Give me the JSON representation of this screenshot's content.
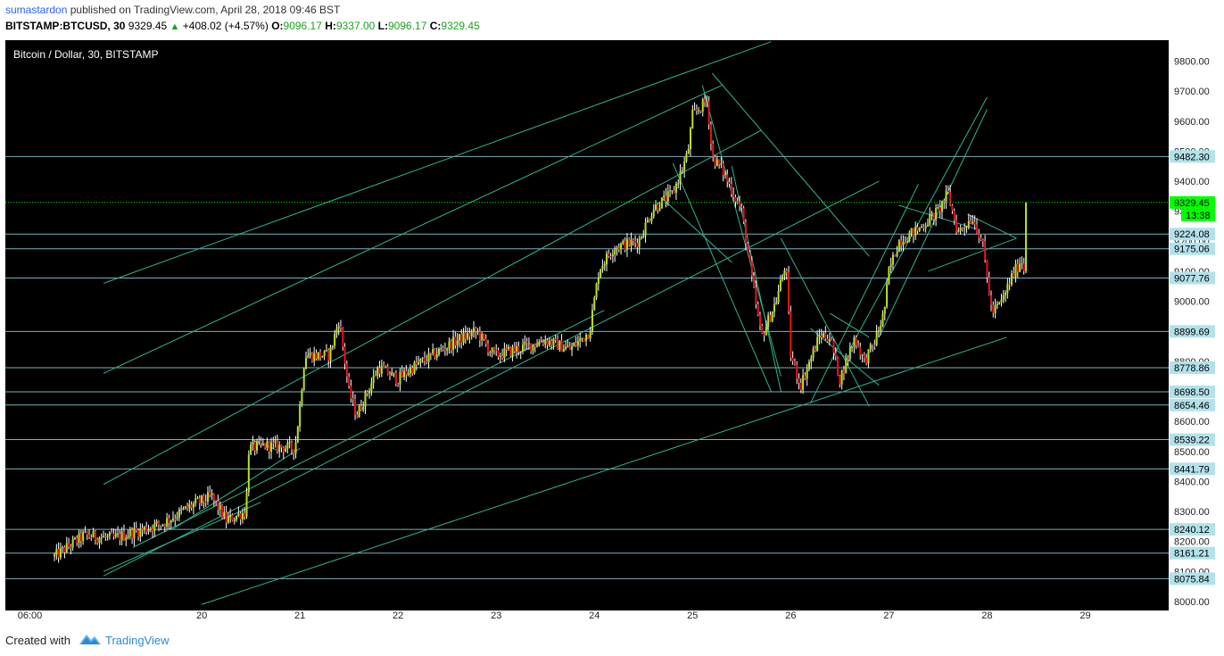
{
  "header": {
    "author": "sumastardon",
    "published": "published on TradingView.com, April 28, 2018 09:46 BST",
    "symbol": "BITSTAMP:BTCUSD, 30",
    "last": "9329.45",
    "change": "+408.02 (+4.57%)",
    "o_label": "O:",
    "o_value": "9096.17",
    "h_label": "H:",
    "h_value": "9337.00",
    "l_label": "L:",
    "l_value": "9096.17",
    "c_label": "C:",
    "c_value": "9329.45"
  },
  "footer": {
    "created_with": "Created with",
    "brand": "TradingView"
  },
  "colors": {
    "background": "#000000",
    "line": "#2fb58e",
    "level": "#8fd3dc",
    "up": "#b9e31b",
    "down": "#e8141c",
    "last_price": "#00ff00"
  },
  "chart_data": {
    "type": "candlestick",
    "title": "Bitcoin / Dollar, 30, BITSTAMP",
    "xlabel": "",
    "ylabel": "",
    "ylim": [
      7970,
      9870
    ],
    "y_ticks": [
      8000,
      8100,
      8200,
      8300,
      8400,
      8500,
      8600,
      8700,
      8800,
      8900,
      9000,
      9100,
      9200,
      9300,
      9400,
      9500,
      9600,
      9700,
      9800
    ],
    "x_ticks": [
      {
        "label": "06:00",
        "day": 18.25
      },
      {
        "label": "20",
        "day": 20
      },
      {
        "label": "21",
        "day": 21
      },
      {
        "label": "22",
        "day": 22
      },
      {
        "label": "23",
        "day": 23
      },
      {
        "label": "24",
        "day": 24
      },
      {
        "label": "25",
        "day": 25
      },
      {
        "label": "26",
        "day": 26
      },
      {
        "label": "27",
        "day": 27
      },
      {
        "label": "28",
        "day": 28
      },
      {
        "label": "29",
        "day": 29
      }
    ],
    "last_price": {
      "value": 9329.45,
      "label": "9329.45",
      "countdown": "13:38"
    },
    "horizontal_levels": [
      9482.3,
      9224.08,
      9175.06,
      9077.76,
      8899.69,
      8778.86,
      8698.5,
      8654.46,
      8539.22,
      8441.79,
      8240.12,
      8161.21,
      8075.84
    ],
    "level_labels": [
      "9482.30",
      "9224.08",
      "9175.06",
      "9077.76",
      "8899.69",
      "8778.86",
      "8698.50",
      "8654.46",
      "8539.22",
      "8441.79",
      "8240.12",
      "8161.21",
      "8075.84"
    ],
    "trendlines": [
      [
        [
          19.0,
          9060
        ],
        [
          25.8,
          9865
        ]
      ],
      [
        [
          19.0,
          8760
        ],
        [
          25.3,
          9720
        ]
      ],
      [
        [
          19.0,
          8390
        ],
        [
          25.7,
          9570
        ]
      ],
      [
        [
          19.3,
          8180
        ],
        [
          24.1,
          8970
        ]
      ],
      [
        [
          19.0,
          8085
        ],
        [
          26.9,
          9400
        ]
      ],
      [
        [
          20.0,
          7990
        ],
        [
          28.2,
          8880
        ]
      ],
      [
        [
          19.0,
          8100
        ],
        [
          20.6,
          8330
        ]
      ],
      [
        [
          19.7,
          8240
        ],
        [
          21.0,
          8510
        ]
      ],
      [
        [
          20.5,
          8540
        ],
        [
          20.8,
          8500
        ]
      ],
      [
        [
          24.7,
          9340
        ],
        [
          25.4,
          9130
        ]
      ],
      [
        [
          24.8,
          9460
        ],
        [
          25.8,
          8700
        ]
      ],
      [
        [
          25.1,
          9720
        ],
        [
          25.9,
          8750
        ]
      ],
      [
        [
          25.2,
          9760
        ],
        [
          26.8,
          9150
        ]
      ],
      [
        [
          25.4,
          9450
        ],
        [
          25.9,
          8700
        ]
      ],
      [
        [
          25.9,
          9210
        ],
        [
          26.8,
          8650
        ]
      ],
      [
        [
          26.2,
          8660
        ],
        [
          27.3,
          9390
        ]
      ],
      [
        [
          26.4,
          8960
        ],
        [
          26.8,
          8880
        ]
      ],
      [
        [
          26.6,
          8840
        ],
        [
          28.0,
          9680
        ]
      ],
      [
        [
          26.9,
          8880
        ],
        [
          28.0,
          9640
        ]
      ],
      [
        [
          26.2,
          8910
        ],
        [
          26.9,
          8720
        ]
      ],
      [
        [
          27.1,
          9320
        ],
        [
          27.9,
          9240
        ]
      ],
      [
        [
          27.4,
          9100
        ],
        [
          28.3,
          9210
        ]
      ],
      [
        [
          27.8,
          9290
        ],
        [
          28.3,
          9210
        ]
      ]
    ],
    "anchors": [
      [
        18.5,
        8150
      ],
      [
        18.8,
        8220
      ],
      [
        19.1,
        8210
      ],
      [
        19.4,
        8240
      ],
      [
        19.6,
        8260
      ],
      [
        19.9,
        8320
      ],
      [
        20.1,
        8350
      ],
      [
        20.25,
        8270
      ],
      [
        20.45,
        8300
      ],
      [
        20.48,
        8510
      ],
      [
        20.65,
        8520
      ],
      [
        20.95,
        8510
      ],
      [
        21.0,
        8650
      ],
      [
        21.05,
        8820
      ],
      [
        21.3,
        8820
      ],
      [
        21.4,
        8940
      ],
      [
        21.5,
        8700
      ],
      [
        21.58,
        8620
      ],
      [
        21.8,
        8780
      ],
      [
        22.0,
        8740
      ],
      [
        22.15,
        8780
      ],
      [
        22.35,
        8820
      ],
      [
        22.6,
        8870
      ],
      [
        22.8,
        8900
      ],
      [
        22.95,
        8830
      ],
      [
        23.0,
        8820
      ],
      [
        23.3,
        8850
      ],
      [
        23.5,
        8870
      ],
      [
        23.75,
        8840
      ],
      [
        23.95,
        8900
      ],
      [
        24.05,
        9110
      ],
      [
        24.2,
        9180
      ],
      [
        24.45,
        9200
      ],
      [
        24.6,
        9310
      ],
      [
        24.8,
        9360
      ],
      [
        24.95,
        9490
      ],
      [
        25.0,
        9620
      ],
      [
        25.15,
        9670
      ],
      [
        25.2,
        9480
      ],
      [
        25.3,
        9440
      ],
      [
        25.5,
        9300
      ],
      [
        25.6,
        9080
      ],
      [
        25.7,
        8880
      ],
      [
        25.85,
        9000
      ],
      [
        25.95,
        9130
      ],
      [
        26.0,
        8820
      ],
      [
        26.1,
        8720
      ],
      [
        26.3,
        8890
      ],
      [
        26.4,
        8880
      ],
      [
        26.5,
        8740
      ],
      [
        26.65,
        8880
      ],
      [
        26.75,
        8800
      ],
      [
        26.85,
        8860
      ],
      [
        26.95,
        8960
      ],
      [
        27.0,
        9100
      ],
      [
        27.1,
        9200
      ],
      [
        27.3,
        9240
      ],
      [
        27.5,
        9300
      ],
      [
        27.6,
        9360
      ],
      [
        27.7,
        9230
      ],
      [
        27.85,
        9280
      ],
      [
        27.95,
        9200
      ],
      [
        28.05,
        8960
      ],
      [
        28.15,
        9000
      ],
      [
        28.25,
        9080
      ],
      [
        28.35,
        9140
      ],
      [
        28.38,
        9100
      ],
      [
        28.4,
        9329
      ]
    ]
  }
}
